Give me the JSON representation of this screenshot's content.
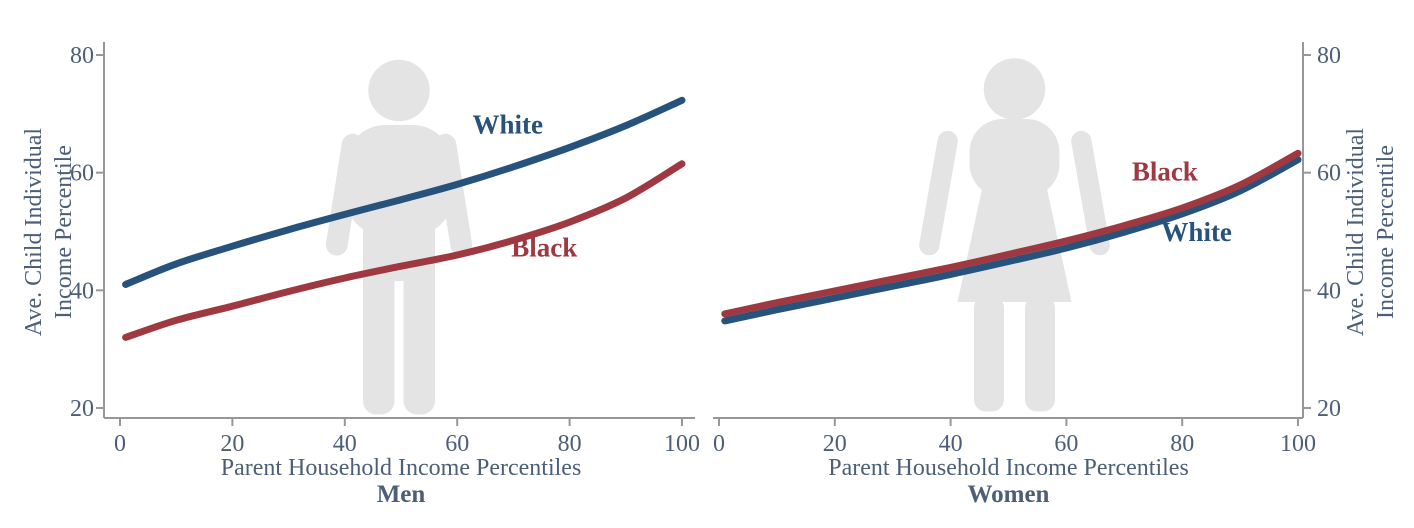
{
  "figure": {
    "background": "#ffffff",
    "axis_color": "#979797",
    "text_color": "#4c5f77",
    "silhouette_fill": "#e4e4e4",
    "icons": [
      "man-icon",
      "woman-icon"
    ]
  },
  "chart_data": [
    {
      "type": "line",
      "panel_label": "Men",
      "xlabel": "Parent Household Income Percentiles",
      "ylabel_lines": [
        "Ave. Child Individual",
        "Income Percentile"
      ],
      "y_axis_side": "left",
      "background_icon": "man-icon",
      "grid": false,
      "legend_position": "inline-labels",
      "xlim": [
        0,
        100
      ],
      "ylim": [
        20,
        80
      ],
      "xticks": [
        0,
        20,
        40,
        60,
        80,
        100
      ],
      "yticks": [
        20,
        40,
        60,
        80
      ],
      "x": [
        1,
        10,
        20,
        30,
        40,
        50,
        60,
        70,
        80,
        90,
        100
      ],
      "series": [
        {
          "name": "White",
          "color": "#27527b",
          "values": [
            41.0,
            44.5,
            47.5,
            50.3,
            52.9,
            55.4,
            58.0,
            61.0,
            64.3,
            68.0,
            72.3
          ],
          "label_x": 69,
          "label_y": 68.2
        },
        {
          "name": "Black",
          "color": "#9e3841",
          "values": [
            32.0,
            34.9,
            37.3,
            39.8,
            42.1,
            44.1,
            46.0,
            48.5,
            51.6,
            55.7,
            61.5
          ],
          "label_x": 75.5,
          "label_y": 47.3
        }
      ]
    },
    {
      "type": "line",
      "panel_label": "Women",
      "xlabel": "Parent Household Income Percentiles",
      "ylabel_lines": [
        "Ave. Child Individual",
        "Income Percentile"
      ],
      "y_axis_side": "right",
      "background_icon": "woman-icon",
      "grid": false,
      "legend_position": "inline-labels",
      "xlim": [
        0,
        100
      ],
      "ylim": [
        20,
        80
      ],
      "xticks": [
        0,
        20,
        40,
        60,
        80,
        100
      ],
      "yticks": [
        20,
        40,
        60,
        80
      ],
      "x": [
        1,
        10,
        20,
        30,
        40,
        50,
        60,
        70,
        80,
        90,
        100
      ],
      "series": [
        {
          "name": "White",
          "color": "#27527b",
          "values": [
            34.8,
            36.7,
            38.7,
            40.7,
            42.7,
            44.9,
            47.2,
            49.9,
            53.0,
            56.9,
            62.2
          ],
          "label_x": 82.5,
          "label_y": 49.9
        },
        {
          "name": "Black",
          "color": "#9e3841",
          "values": [
            36.0,
            37.9,
            39.9,
            41.9,
            43.9,
            46.1,
            48.4,
            51.0,
            54.0,
            57.9,
            63.3
          ],
          "label_x": 77,
          "label_y": 60.2
        }
      ]
    }
  ]
}
